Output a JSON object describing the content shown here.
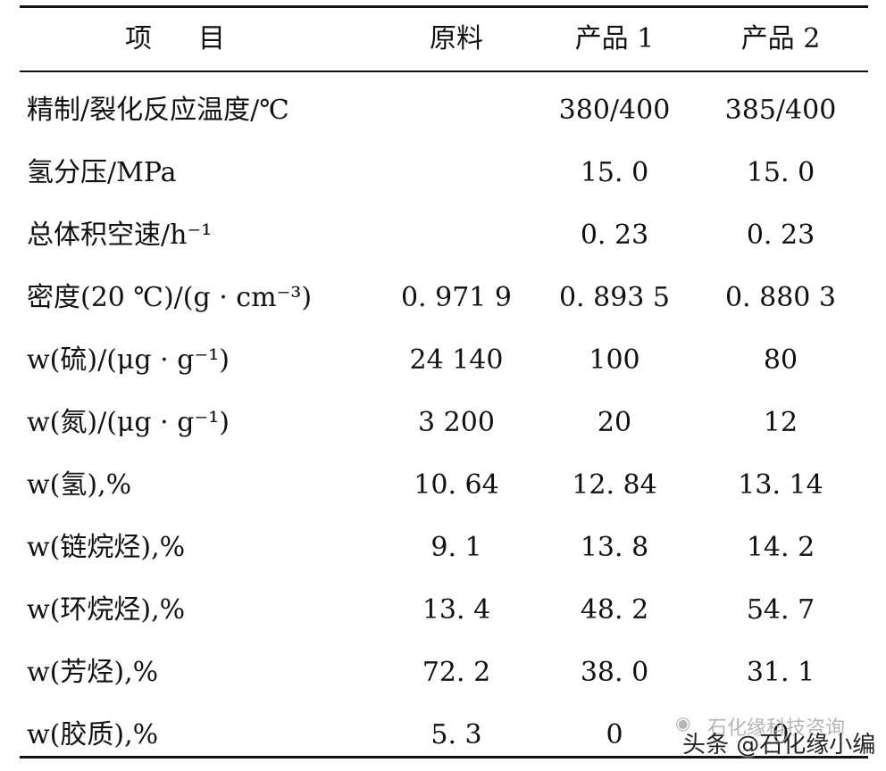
{
  "table": {
    "headers": [
      "项目",
      "原料",
      "产品 1",
      "产品 2"
    ],
    "rows": [
      {
        "item": "精制/裂化反应温度/℃",
        "raw": "",
        "p1": "380/400",
        "p2": "385/400"
      },
      {
        "item": "氢分压/MPa",
        "raw": "",
        "p1": "15. 0",
        "p2": "15. 0"
      },
      {
        "item": "总体积空速/h⁻¹",
        "raw": "",
        "p1": "0. 23",
        "p2": "0. 23"
      },
      {
        "item": "密度(20 ℃)/(g · cm⁻³)",
        "raw": "0. 971 9",
        "p1": "0. 893 5",
        "p2": "0. 880 3"
      },
      {
        "item": "w(硫)/(μg · g⁻¹)",
        "raw": "24 140",
        "p1": "100",
        "p2": "80"
      },
      {
        "item": "w(氮)/(μg · g⁻¹)",
        "raw": "3 200",
        "p1": "20",
        "p2": "12"
      },
      {
        "item": "w(氢),%",
        "raw": "10. 64",
        "p1": "12. 84",
        "p2": "13. 14"
      },
      {
        "item": "w(链烷烃),%",
        "raw": "9. 1",
        "p1": "13. 8",
        "p2": "14. 2"
      },
      {
        "item": "w(环烷烃),%",
        "raw": "13. 4",
        "p1": "48. 2",
        "p2": "54. 7"
      },
      {
        "item": "w(芳烃),%",
        "raw": "72. 2",
        "p1": "38. 0",
        "p2": "31. 1"
      },
      {
        "item": "w(胶质),%",
        "raw": "5. 3",
        "p1": "0",
        "p2": "0"
      }
    ]
  },
  "watermark": {
    "text": "头条 @石化缘小编",
    "behind_text": "石化缘科技咨询",
    "icon": "wechat-icon"
  }
}
